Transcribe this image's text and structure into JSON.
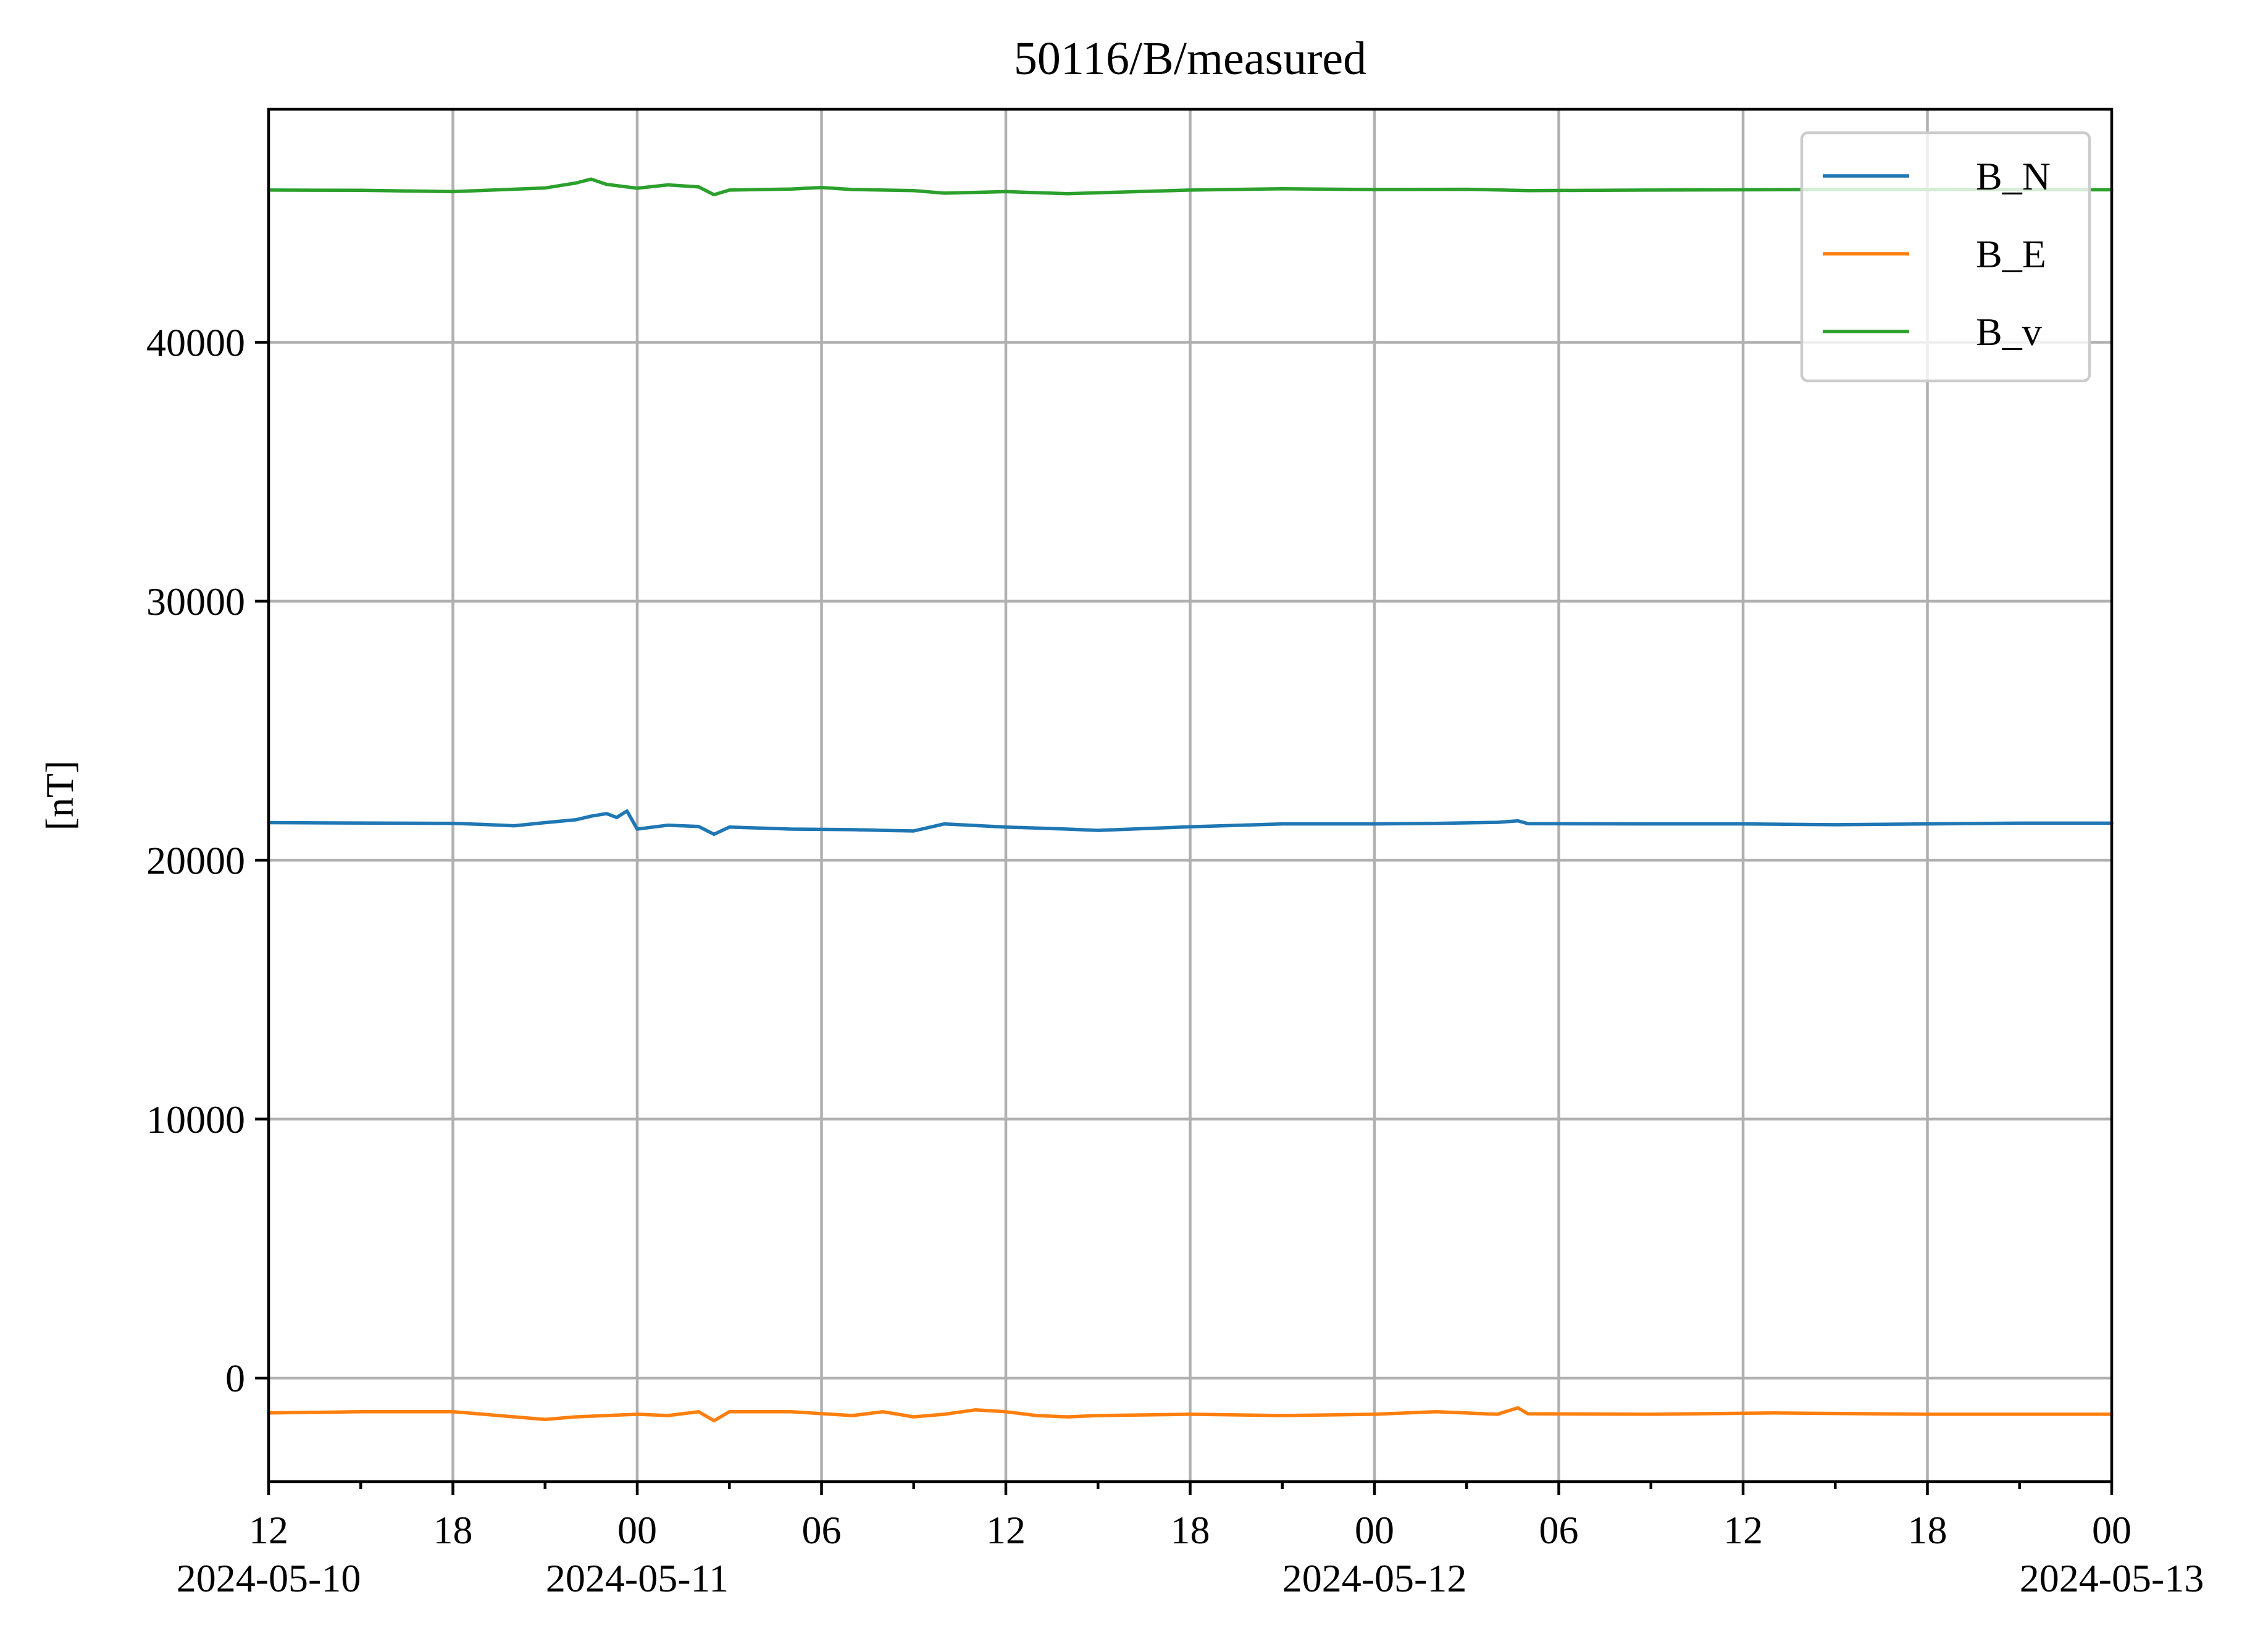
{
  "chart_data": {
    "type": "line",
    "title": "50116/B/measured",
    "xlabel": "",
    "ylabel": "[nT]",
    "x_range": [
      "2024-05-10T12:00",
      "2024-05-13T00:00"
    ],
    "ylim": [
      -4000,
      49000
    ],
    "y_ticks": [
      0,
      10000,
      20000,
      30000,
      40000
    ],
    "x_ticks": [
      {
        "t": "2024-05-10T12:00",
        "label": "12",
        "date_label": "2024-05-10"
      },
      {
        "t": "2024-05-10T18:00",
        "label": "18",
        "date_label": ""
      },
      {
        "t": "2024-05-11T00:00",
        "label": "00",
        "date_label": "2024-05-11"
      },
      {
        "t": "2024-05-11T06:00",
        "label": "06",
        "date_label": ""
      },
      {
        "t": "2024-05-11T12:00",
        "label": "12",
        "date_label": ""
      },
      {
        "t": "2024-05-11T18:00",
        "label": "18",
        "date_label": ""
      },
      {
        "t": "2024-05-12T00:00",
        "label": "00",
        "date_label": "2024-05-12"
      },
      {
        "t": "2024-05-12T06:00",
        "label": "06",
        "date_label": ""
      },
      {
        "t": "2024-05-12T12:00",
        "label": "12",
        "date_label": ""
      },
      {
        "t": "2024-05-12T18:00",
        "label": "18",
        "date_label": ""
      },
      {
        "t": "2024-05-13T00:00",
        "label": "00",
        "date_label": "2024-05-13"
      }
    ],
    "minor_x_ticks": [
      "2024-05-10T15:00",
      "2024-05-10T21:00",
      "2024-05-11T03:00",
      "2024-05-11T09:00",
      "2024-05-11T15:00",
      "2024-05-11T21:00",
      "2024-05-12T03:00",
      "2024-05-12T09:00",
      "2024-05-12T15:00",
      "2024-05-12T21:00"
    ],
    "grid": true,
    "legend_position": "top-right",
    "series": [
      {
        "name": "B_N",
        "color": "#1f77b4",
        "points": [
          [
            "2024-05-10T12:00",
            21450
          ],
          [
            "2024-05-10T14:00",
            21440
          ],
          [
            "2024-05-10T16:00",
            21430
          ],
          [
            "2024-05-10T18:00",
            21420
          ],
          [
            "2024-05-10T19:00",
            21380
          ],
          [
            "2024-05-10T20:00",
            21330
          ],
          [
            "2024-05-10T21:00",
            21450
          ],
          [
            "2024-05-10T22:00",
            21560
          ],
          [
            "2024-05-10T22:30",
            21700
          ],
          [
            "2024-05-10T23:00",
            21800
          ],
          [
            "2024-05-10T23:20",
            21650
          ],
          [
            "2024-05-10T23:40",
            21900
          ],
          [
            "2024-05-11T00:00",
            21200
          ],
          [
            "2024-05-11T01:00",
            21350
          ],
          [
            "2024-05-11T02:00",
            21300
          ],
          [
            "2024-05-11T02:30",
            21000
          ],
          [
            "2024-05-11T03:00",
            21280
          ],
          [
            "2024-05-11T05:00",
            21200
          ],
          [
            "2024-05-11T07:00",
            21180
          ],
          [
            "2024-05-11T08:00",
            21150
          ],
          [
            "2024-05-11T09:00",
            21130
          ],
          [
            "2024-05-11T10:00",
            21400
          ],
          [
            "2024-05-11T12:00",
            21280
          ],
          [
            "2024-05-11T14:00",
            21200
          ],
          [
            "2024-05-11T15:00",
            21150
          ],
          [
            "2024-05-11T18:00",
            21290
          ],
          [
            "2024-05-11T21:00",
            21400
          ],
          [
            "2024-05-12T00:00",
            21400
          ],
          [
            "2024-05-12T02:00",
            21420
          ],
          [
            "2024-05-12T04:00",
            21460
          ],
          [
            "2024-05-12T04:40",
            21520
          ],
          [
            "2024-05-12T05:00",
            21410
          ],
          [
            "2024-05-12T09:00",
            21400
          ],
          [
            "2024-05-12T12:00",
            21400
          ],
          [
            "2024-05-12T15:00",
            21370
          ],
          [
            "2024-05-12T18:00",
            21400
          ],
          [
            "2024-05-12T21:00",
            21430
          ],
          [
            "2024-05-13T00:00",
            21430
          ]
        ]
      },
      {
        "name": "B_E",
        "color": "#ff7f0e",
        "points": [
          [
            "2024-05-10T12:00",
            -1350
          ],
          [
            "2024-05-10T15:00",
            -1300
          ],
          [
            "2024-05-10T18:00",
            -1300
          ],
          [
            "2024-05-10T20:00",
            -1500
          ],
          [
            "2024-05-10T21:00",
            -1600
          ],
          [
            "2024-05-10T22:00",
            -1500
          ],
          [
            "2024-05-11T00:00",
            -1400
          ],
          [
            "2024-05-11T01:00",
            -1450
          ],
          [
            "2024-05-11T02:00",
            -1300
          ],
          [
            "2024-05-11T02:30",
            -1650
          ],
          [
            "2024-05-11T03:00",
            -1300
          ],
          [
            "2024-05-11T05:00",
            -1300
          ],
          [
            "2024-05-11T07:00",
            -1450
          ],
          [
            "2024-05-11T08:00",
            -1300
          ],
          [
            "2024-05-11T09:00",
            -1500
          ],
          [
            "2024-05-11T10:00",
            -1400
          ],
          [
            "2024-05-11T11:00",
            -1230
          ],
          [
            "2024-05-11T12:00",
            -1300
          ],
          [
            "2024-05-11T13:00",
            -1450
          ],
          [
            "2024-05-11T14:00",
            -1500
          ],
          [
            "2024-05-11T15:00",
            -1450
          ],
          [
            "2024-05-11T18:00",
            -1400
          ],
          [
            "2024-05-11T21:00",
            -1450
          ],
          [
            "2024-05-12T00:00",
            -1400
          ],
          [
            "2024-05-12T02:00",
            -1300
          ],
          [
            "2024-05-12T04:00",
            -1400
          ],
          [
            "2024-05-12T04:40",
            -1150
          ],
          [
            "2024-05-12T05:00",
            -1380
          ],
          [
            "2024-05-12T09:00",
            -1400
          ],
          [
            "2024-05-12T13:00",
            -1350
          ],
          [
            "2024-05-12T18:00",
            -1400
          ],
          [
            "2024-05-13T00:00",
            -1400
          ]
        ]
      },
      {
        "name": "B_v",
        "color": "#2ca02c",
        "points": [
          [
            "2024-05-10T12:00",
            45880
          ],
          [
            "2024-05-10T15:00",
            45870
          ],
          [
            "2024-05-10T18:00",
            45820
          ],
          [
            "2024-05-10T21:00",
            45960
          ],
          [
            "2024-05-10T22:00",
            46150
          ],
          [
            "2024-05-10T22:30",
            46300
          ],
          [
            "2024-05-10T23:00",
            46100
          ],
          [
            "2024-05-11T00:00",
            45950
          ],
          [
            "2024-05-11T01:00",
            46080
          ],
          [
            "2024-05-11T02:00",
            46000
          ],
          [
            "2024-05-11T02:30",
            45700
          ],
          [
            "2024-05-11T03:00",
            45880
          ],
          [
            "2024-05-11T05:00",
            45920
          ],
          [
            "2024-05-11T06:00",
            45980
          ],
          [
            "2024-05-11T07:00",
            45900
          ],
          [
            "2024-05-11T09:00",
            45860
          ],
          [
            "2024-05-11T10:00",
            45760
          ],
          [
            "2024-05-11T12:00",
            45820
          ],
          [
            "2024-05-11T14:00",
            45740
          ],
          [
            "2024-05-11T18:00",
            45880
          ],
          [
            "2024-05-11T21:00",
            45930
          ],
          [
            "2024-05-12T00:00",
            45900
          ],
          [
            "2024-05-12T03:00",
            45910
          ],
          [
            "2024-05-12T05:00",
            45860
          ],
          [
            "2024-05-12T09:00",
            45880
          ],
          [
            "2024-05-12T15:00",
            45900
          ],
          [
            "2024-05-13T00:00",
            45890
          ]
        ]
      }
    ]
  }
}
